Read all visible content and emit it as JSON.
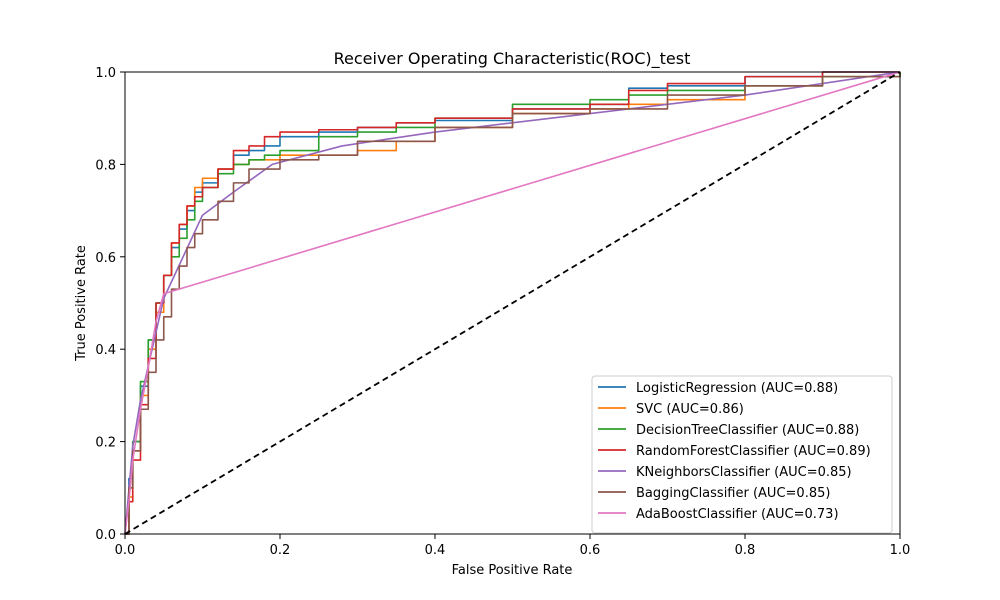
{
  "chart_data": {
    "type": "line",
    "title": "Receiver Operating Characteristic(ROC)_test",
    "xlabel": "False Positive Rate",
    "ylabel": "True Positive Rate",
    "xlim": [
      0,
      1
    ],
    "ylim": [
      0,
      1
    ],
    "x_ticks": [
      "0.0",
      "0.2",
      "0.4",
      "0.6",
      "0.8",
      "1.0"
    ],
    "y_ticks": [
      "0.0",
      "0.2",
      "0.4",
      "0.6",
      "0.8",
      "1.0"
    ],
    "grid": false,
    "legend_position": "lower-right",
    "series": [
      {
        "name": "LogisticRegression (AUC=0.88)",
        "color": "#1f77b4",
        "x": [
          0,
          0.005,
          0.01,
          0.02,
          0.03,
          0.04,
          0.05,
          0.06,
          0.07,
          0.08,
          0.09,
          0.1,
          0.12,
          0.14,
          0.16,
          0.18,
          0.2,
          0.25,
          0.3,
          0.35,
          0.4,
          0.5,
          0.6,
          0.65,
          0.7,
          0.8,
          0.9,
          1.0
        ],
        "y": [
          0,
          0.12,
          0.2,
          0.32,
          0.42,
          0.5,
          0.56,
          0.62,
          0.66,
          0.7,
          0.74,
          0.76,
          0.79,
          0.82,
          0.83,
          0.84,
          0.86,
          0.87,
          0.88,
          0.89,
          0.895,
          0.92,
          0.93,
          0.965,
          0.97,
          0.99,
          1.0,
          1.0
        ]
      },
      {
        "name": "SVC (AUC=0.86)",
        "color": "#ff7f0e",
        "x": [
          0,
          0.005,
          0.01,
          0.02,
          0.03,
          0.04,
          0.05,
          0.06,
          0.07,
          0.08,
          0.09,
          0.1,
          0.12,
          0.14,
          0.16,
          0.18,
          0.2,
          0.25,
          0.3,
          0.35,
          0.4,
          0.5,
          0.6,
          0.65,
          0.7,
          0.8,
          0.9,
          1.0
        ],
        "y": [
          0,
          0.08,
          0.18,
          0.3,
          0.4,
          0.48,
          0.56,
          0.63,
          0.67,
          0.71,
          0.75,
          0.77,
          0.79,
          0.8,
          0.81,
          0.81,
          0.82,
          0.82,
          0.83,
          0.85,
          0.88,
          0.91,
          0.92,
          0.93,
          0.94,
          0.97,
          0.99,
          1.0
        ]
      },
      {
        "name": "DecisionTreeClassifier (AUC=0.88)",
        "color": "#2ca02c",
        "x": [
          0,
          0.005,
          0.01,
          0.02,
          0.03,
          0.04,
          0.05,
          0.06,
          0.07,
          0.08,
          0.09,
          0.1,
          0.12,
          0.14,
          0.16,
          0.18,
          0.2,
          0.25,
          0.3,
          0.35,
          0.4,
          0.5,
          0.6,
          0.65,
          0.7,
          0.8,
          0.9,
          1.0
        ],
        "y": [
          0,
          0.1,
          0.2,
          0.33,
          0.42,
          0.5,
          0.56,
          0.6,
          0.64,
          0.68,
          0.72,
          0.75,
          0.78,
          0.8,
          0.81,
          0.82,
          0.83,
          0.86,
          0.87,
          0.88,
          0.9,
          0.93,
          0.94,
          0.95,
          0.96,
          0.97,
          0.99,
          1.0
        ]
      },
      {
        "name": "RandomForestClassifier (AUC=0.89)",
        "color": "#d62728",
        "x": [
          0,
          0.005,
          0.01,
          0.02,
          0.03,
          0.04,
          0.05,
          0.06,
          0.07,
          0.08,
          0.09,
          0.1,
          0.12,
          0.14,
          0.16,
          0.18,
          0.2,
          0.25,
          0.3,
          0.35,
          0.4,
          0.5,
          0.6,
          0.65,
          0.7,
          0.8,
          0.9,
          1.0
        ],
        "y": [
          0,
          0.07,
          0.16,
          0.28,
          0.38,
          0.5,
          0.56,
          0.63,
          0.67,
          0.71,
          0.73,
          0.75,
          0.79,
          0.83,
          0.84,
          0.86,
          0.87,
          0.875,
          0.88,
          0.89,
          0.9,
          0.92,
          0.93,
          0.96,
          0.975,
          0.99,
          1.0,
          1.0
        ]
      },
      {
        "name": "KNeighborsClassifier (AUC=0.85)",
        "color": "#9467bd",
        "x": [
          0,
          0.01,
          0.02,
          0.05,
          0.1,
          0.14,
          0.19,
          0.28,
          0.4,
          0.6,
          0.8,
          1.0
        ],
        "y": [
          0,
          0.19,
          0.29,
          0.51,
          0.69,
          0.74,
          0.8,
          0.84,
          0.87,
          0.91,
          0.95,
          1.0
        ]
      },
      {
        "name": "BaggingClassifier (AUC=0.85)",
        "color": "#8c564b",
        "x": [
          0,
          0.005,
          0.01,
          0.02,
          0.03,
          0.04,
          0.05,
          0.06,
          0.07,
          0.08,
          0.09,
          0.1,
          0.12,
          0.14,
          0.16,
          0.2,
          0.25,
          0.3,
          0.4,
          0.5,
          0.6,
          0.7,
          0.8,
          0.9,
          1.0
        ],
        "y": [
          0,
          0.1,
          0.18,
          0.27,
          0.35,
          0.42,
          0.47,
          0.53,
          0.58,
          0.62,
          0.65,
          0.68,
          0.72,
          0.76,
          0.79,
          0.81,
          0.82,
          0.85,
          0.88,
          0.91,
          0.92,
          0.95,
          0.97,
          0.99,
          1.0
        ]
      },
      {
        "name": "AdaBoostClassifier (AUC=0.73)",
        "color": "#e377c2",
        "x": [
          0,
          0.005,
          0.01,
          0.02,
          0.03,
          0.04,
          0.05,
          1.0
        ],
        "y": [
          0,
          0.07,
          0.16,
          0.27,
          0.36,
          0.46,
          0.52,
          1.0
        ]
      },
      {
        "name": "",
        "color": "#000000",
        "dashed": true,
        "x": [
          0,
          1
        ],
        "y": [
          0,
          1
        ]
      }
    ]
  }
}
